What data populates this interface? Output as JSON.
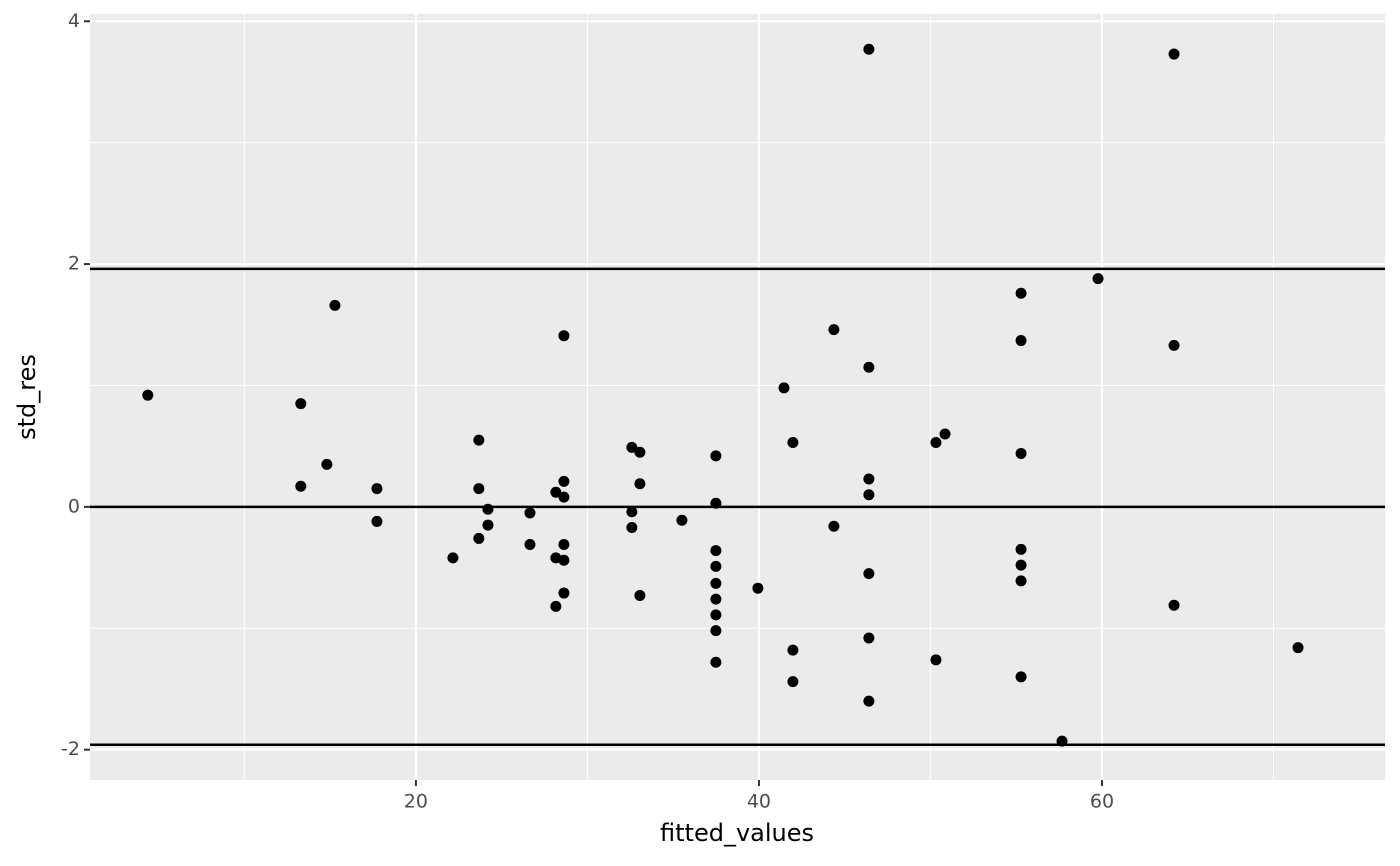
{
  "chart_data": {
    "type": "scatter",
    "x_label": "fitted_values",
    "y_label": "std_res",
    "xlim": [
      1,
      76.5
    ],
    "ylim": [
      -2.25,
      4.06
    ],
    "xticks": [
      20,
      40,
      60
    ],
    "yticks": [
      -2,
      0,
      2,
      4
    ],
    "xminor": [
      10,
      30,
      50,
      70
    ],
    "yminor": [
      -1,
      1,
      3
    ],
    "grid": true,
    "color": "#000000",
    "panel_color": "#ebebeb",
    "hlines": [
      -1.96,
      0,
      1.96
    ],
    "x": [
      4.37,
      13.29,
      13.29,
      14.81,
      15.28,
      17.73,
      17.73,
      22.16,
      23.67,
      23.67,
      23.67,
      24.2,
      24.2,
      26.65,
      26.65,
      28.16,
      28.16,
      28.16,
      28.63,
      28.63,
      28.63,
      28.63,
      28.63,
      28.63,
      32.59,
      32.59,
      32.59,
      33.06,
      33.06,
      33.06,
      35.51,
      37.49,
      37.49,
      37.49,
      37.49,
      37.49,
      37.49,
      37.49,
      37.49,
      37.49,
      39.94,
      41.46,
      41.98,
      41.98,
      41.98,
      44.37,
      44.37,
      46.41,
      46.41,
      46.41,
      46.41,
      46.41,
      46.41,
      46.41,
      50.32,
      50.32,
      50.85,
      55.28,
      55.28,
      55.28,
      55.28,
      55.28,
      55.28,
      55.28,
      57.67,
      59.77,
      64.2,
      64.2,
      64.2,
      71.43
    ],
    "values": [
      0.92,
      0.85,
      0.17,
      0.35,
      1.66,
      0.15,
      -0.12,
      -0.42,
      0.55,
      0.15,
      -0.26,
      -0.02,
      -0.15,
      -0.05,
      -0.31,
      0.12,
      -0.42,
      -0.82,
      1.41,
      0.21,
      0.08,
      -0.31,
      -0.44,
      -0.71,
      0.49,
      -0.04,
      -0.17,
      0.45,
      0.19,
      -0.73,
      -0.11,
      0.42,
      0.03,
      -0.36,
      -0.49,
      -0.63,
      -0.76,
      -0.89,
      -1.02,
      -1.28,
      -0.67,
      0.98,
      0.53,
      -1.18,
      -1.44,
      1.46,
      -0.16,
      3.77,
      1.15,
      0.23,
      0.1,
      -0.55,
      -1.08,
      -1.6,
      0.53,
      -1.26,
      0.6,
      1.76,
      1.37,
      0.44,
      -0.35,
      -0.48,
      -0.61,
      -1.4,
      -1.93,
      1.88,
      3.73,
      1.33,
      -0.81,
      -1.16
    ]
  }
}
